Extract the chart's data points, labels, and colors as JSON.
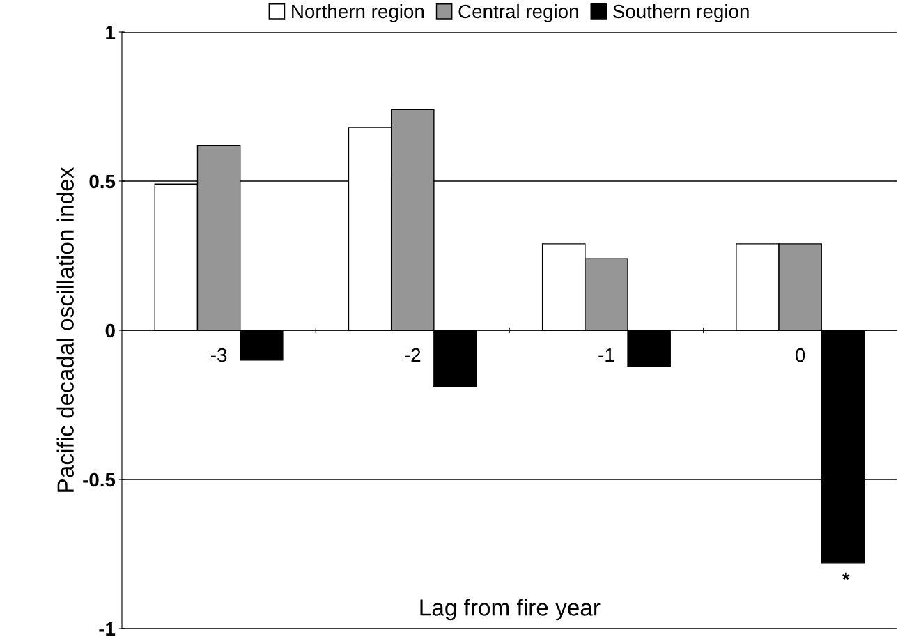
{
  "chart_data": {
    "type": "bar",
    "xlabel": "Lag from fire year",
    "ylabel": "Pacific decadal oscillation index",
    "categories": [
      "-3",
      "-2",
      "-1",
      "0"
    ],
    "series": [
      {
        "name": "Northern region",
        "color": "#ffffff",
        "values": [
          0.49,
          0.68,
          0.29,
          0.29
        ]
      },
      {
        "name": "Central region",
        "color": "#969696",
        "values": [
          0.62,
          0.74,
          0.24,
          0.29
        ]
      },
      {
        "name": "Southern region",
        "color": "#000000",
        "values": [
          -0.1,
          -0.19,
          -0.12,
          -0.78
        ]
      }
    ],
    "ylim": [
      -1,
      1
    ],
    "yticks": [
      -1,
      -0.5,
      0,
      0.5,
      1
    ],
    "grid": "y",
    "legend": "top",
    "annotations": [
      "*"
    ]
  }
}
